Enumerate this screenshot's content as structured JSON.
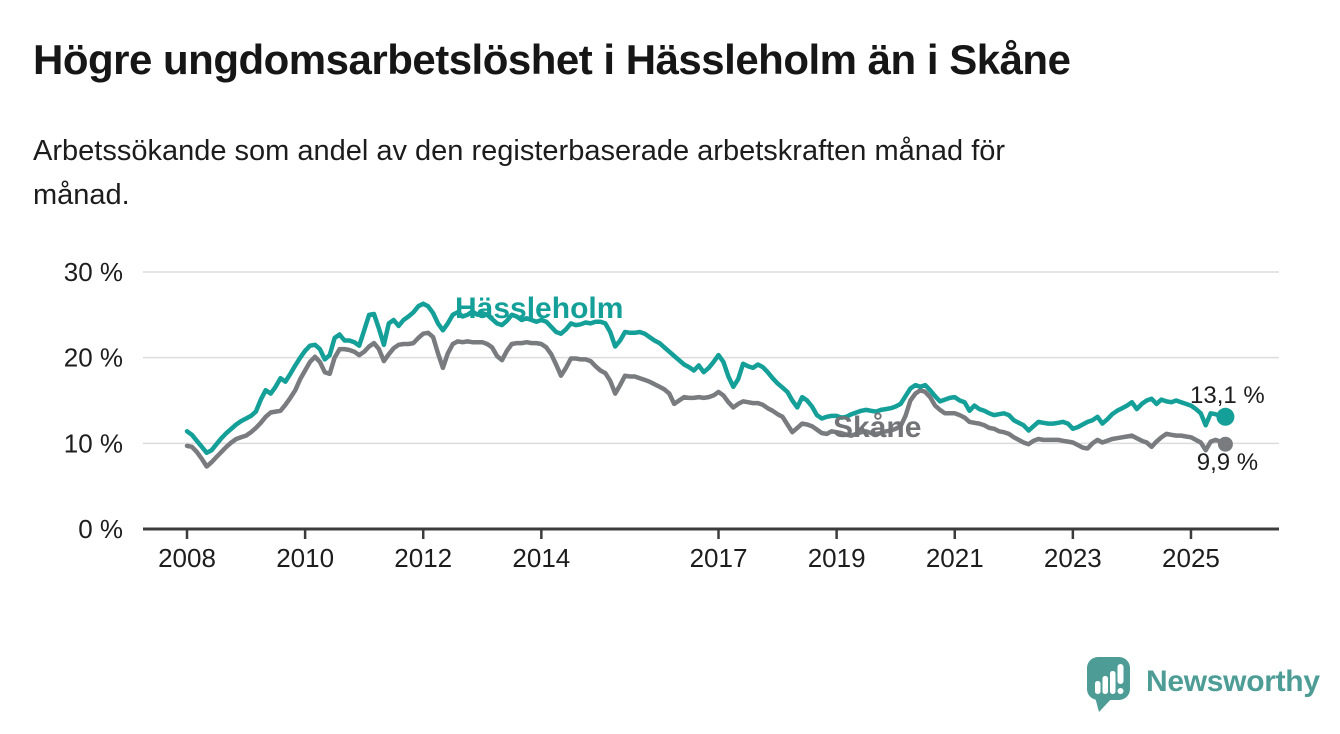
{
  "header": {
    "title": "Högre ungdomsarbetslöshet i Hässleholm än i Skåne",
    "subtitle": "Arbetssökande som andel av den registerbaserade arbetskraften månad för månad."
  },
  "chart_data": {
    "type": "line",
    "title": "Högre ungdomsarbetslöshet i Hässleholm än i Skåne",
    "xlabel": "",
    "ylabel": "",
    "x_unit": "month",
    "x_range": [
      "2008-01",
      "2025-08"
    ],
    "ylim": [
      0,
      30
    ],
    "grid": true,
    "x_ticks": [
      2008,
      2010,
      2012,
      2014,
      2017,
      2019,
      2021,
      2023,
      2025
    ],
    "x_tick_labels": [
      "2008",
      "2010",
      "2012",
      "2014",
      "2017",
      "2019",
      "2021",
      "2023",
      "2025"
    ],
    "y_ticks": [
      0,
      10,
      20,
      30
    ],
    "y_tick_labels": [
      "0 %",
      "10 %",
      "20 %",
      "30 %"
    ],
    "series": [
      {
        "name": "Skåne",
        "color": "#7a7b7f",
        "label_color": "#737478",
        "end_dot_radius": 7.5,
        "values": [
          9.7,
          9.6,
          9.0,
          8.2,
          7.3,
          7.8,
          8.4,
          9.0,
          9.6,
          10.1,
          10.5,
          10.7,
          10.9,
          11.3,
          11.8,
          12.4,
          13.1,
          13.6,
          13.7,
          13.8,
          14.5,
          15.3,
          16.2,
          17.5,
          18.5,
          19.5,
          20.1,
          19.5,
          18.3,
          18.1,
          20.0,
          21.0,
          21.0,
          20.9,
          20.7,
          20.3,
          20.7,
          21.3,
          21.7,
          21.0,
          19.6,
          20.4,
          21.1,
          21.5,
          21.6,
          21.6,
          21.7,
          22.3,
          22.8,
          22.9,
          22.4,
          20.5,
          18.8,
          20.5,
          21.6,
          21.9,
          21.8,
          21.9,
          21.8,
          21.8,
          21.8,
          21.6,
          21.2,
          20.2,
          19.7,
          20.8,
          21.6,
          21.7,
          21.7,
          21.8,
          21.7,
          21.7,
          21.6,
          21.2,
          20.4,
          19.2,
          17.9,
          18.8,
          19.9,
          19.9,
          19.8,
          19.8,
          19.6,
          19.0,
          18.5,
          18.2,
          17.3,
          15.8,
          16.8,
          17.9,
          17.8,
          17.8,
          17.6,
          17.4,
          17.2,
          16.9,
          16.6,
          16.3,
          15.8,
          14.6,
          15.0,
          15.4,
          15.3,
          15.3,
          15.4,
          15.3,
          15.4,
          15.6,
          16.0,
          15.6,
          14.8,
          14.2,
          14.6,
          14.9,
          14.8,
          14.7,
          14.7,
          14.5,
          14.1,
          13.8,
          13.4,
          13.1,
          12.2,
          11.3,
          11.8,
          12.3,
          12.2,
          12.0,
          11.6,
          11.2,
          11.1,
          11.4,
          11.3,
          11.2,
          11.0,
          10.9,
          11.1,
          11.3,
          11.4,
          11.2,
          11.1,
          11.2,
          11.4,
          11.5,
          11.7,
          12.0,
          13.2,
          15.0,
          15.8,
          16.2,
          16.0,
          15.4,
          14.4,
          13.9,
          13.5,
          13.5,
          13.5,
          13.3,
          13.0,
          12.5,
          12.4,
          12.3,
          12.1,
          11.8,
          11.7,
          11.4,
          11.3,
          11.1,
          10.7,
          10.4,
          10.1,
          9.9,
          10.3,
          10.5,
          10.4,
          10.4,
          10.4,
          10.4,
          10.3,
          10.2,
          10.1,
          9.8,
          9.5,
          9.4,
          10.0,
          10.4,
          10.1,
          10.3,
          10.5,
          10.6,
          10.7,
          10.8,
          10.9,
          10.6,
          10.3,
          10.1,
          9.6,
          10.2,
          10.7,
          11.1,
          11.0,
          10.9,
          10.9,
          10.8,
          10.7,
          10.4,
          10.1,
          9.2,
          10.2,
          10.4,
          10.2,
          9.9
        ]
      },
      {
        "name": "Hässleholm",
        "color": "#14a098",
        "label_color": "#14a098",
        "end_dot_radius": 9,
        "values": [
          11.4,
          11.0,
          10.3,
          9.6,
          8.9,
          9.2,
          9.9,
          10.6,
          11.2,
          11.7,
          12.2,
          12.6,
          12.9,
          13.2,
          13.7,
          15.1,
          16.2,
          15.8,
          16.6,
          17.6,
          17.2,
          18.1,
          19.1,
          20.0,
          20.8,
          21.4,
          21.5,
          21.0,
          19.8,
          20.3,
          22.3,
          22.7,
          22.0,
          22.0,
          21.8,
          21.4,
          23.2,
          25.0,
          25.1,
          23.4,
          21.5,
          24.0,
          24.4,
          23.7,
          24.4,
          24.8,
          25.3,
          26.0,
          26.3,
          26.0,
          25.2,
          24.0,
          23.2,
          24.0,
          25.0,
          25.3,
          24.8,
          25.0,
          25.4,
          25.0,
          25.2,
          25.0,
          24.5,
          24.0,
          23.8,
          24.3,
          25.0,
          24.8,
          24.4,
          24.6,
          24.4,
          24.2,
          24.4,
          24.2,
          23.6,
          23.0,
          22.8,
          23.3,
          24.0,
          23.8,
          23.9,
          24.1,
          24.0,
          24.2,
          24.2,
          24.0,
          23.0,
          21.3,
          22.0,
          23.0,
          22.9,
          22.9,
          23.0,
          22.8,
          22.4,
          22.0,
          21.7,
          21.2,
          20.7,
          20.2,
          19.7,
          19.2,
          18.9,
          18.5,
          19.1,
          18.3,
          18.8,
          19.5,
          20.3,
          19.5,
          17.8,
          16.6,
          17.5,
          19.3,
          19.0,
          18.8,
          19.2,
          18.9,
          18.3,
          17.6,
          17.0,
          16.5,
          16.0,
          15.0,
          14.2,
          15.4,
          15.0,
          14.3,
          13.3,
          12.9,
          13.1,
          13.2,
          13.2,
          13.0,
          13.1,
          13.4,
          13.6,
          13.8,
          13.9,
          13.8,
          13.7,
          13.9,
          14.0,
          14.1,
          14.3,
          14.6,
          15.5,
          16.4,
          16.8,
          16.6,
          16.8,
          16.2,
          15.5,
          14.9,
          15.1,
          15.3,
          15.4,
          15.0,
          14.8,
          13.8,
          14.4,
          14.0,
          13.8,
          13.5,
          13.3,
          13.4,
          13.5,
          13.3,
          12.7,
          12.4,
          12.1,
          11.5,
          12.0,
          12.5,
          12.4,
          12.3,
          12.3,
          12.4,
          12.5,
          12.3,
          11.7,
          11.9,
          12.2,
          12.5,
          12.7,
          13.1,
          12.3,
          12.8,
          13.4,
          13.8,
          14.1,
          14.4,
          14.8,
          14.0,
          14.6,
          15.0,
          15.2,
          14.6,
          15.1,
          14.9,
          14.8,
          15.0,
          14.8,
          14.6,
          14.4,
          14.0,
          13.5,
          12.1,
          13.5,
          13.4,
          13.2,
          13.1
        ]
      }
    ],
    "series_labels": [
      {
        "series": "Hässleholm",
        "text": "Hässleholm"
      },
      {
        "series": "Skåne",
        "text": "Skåne"
      }
    ],
    "end_labels": [
      {
        "series": "Hässleholm",
        "text": "13,1 %"
      },
      {
        "series": "Skåne",
        "text": "9,9 %"
      }
    ],
    "colors": {
      "axis": "#3c3c3c",
      "grid": "#dcdcdc",
      "tick_text": "#1d1d1d",
      "value_text": "#1d1d1d"
    }
  },
  "footer": {
    "brand": "Newsworthy",
    "brand_color": "#4d9d96"
  }
}
